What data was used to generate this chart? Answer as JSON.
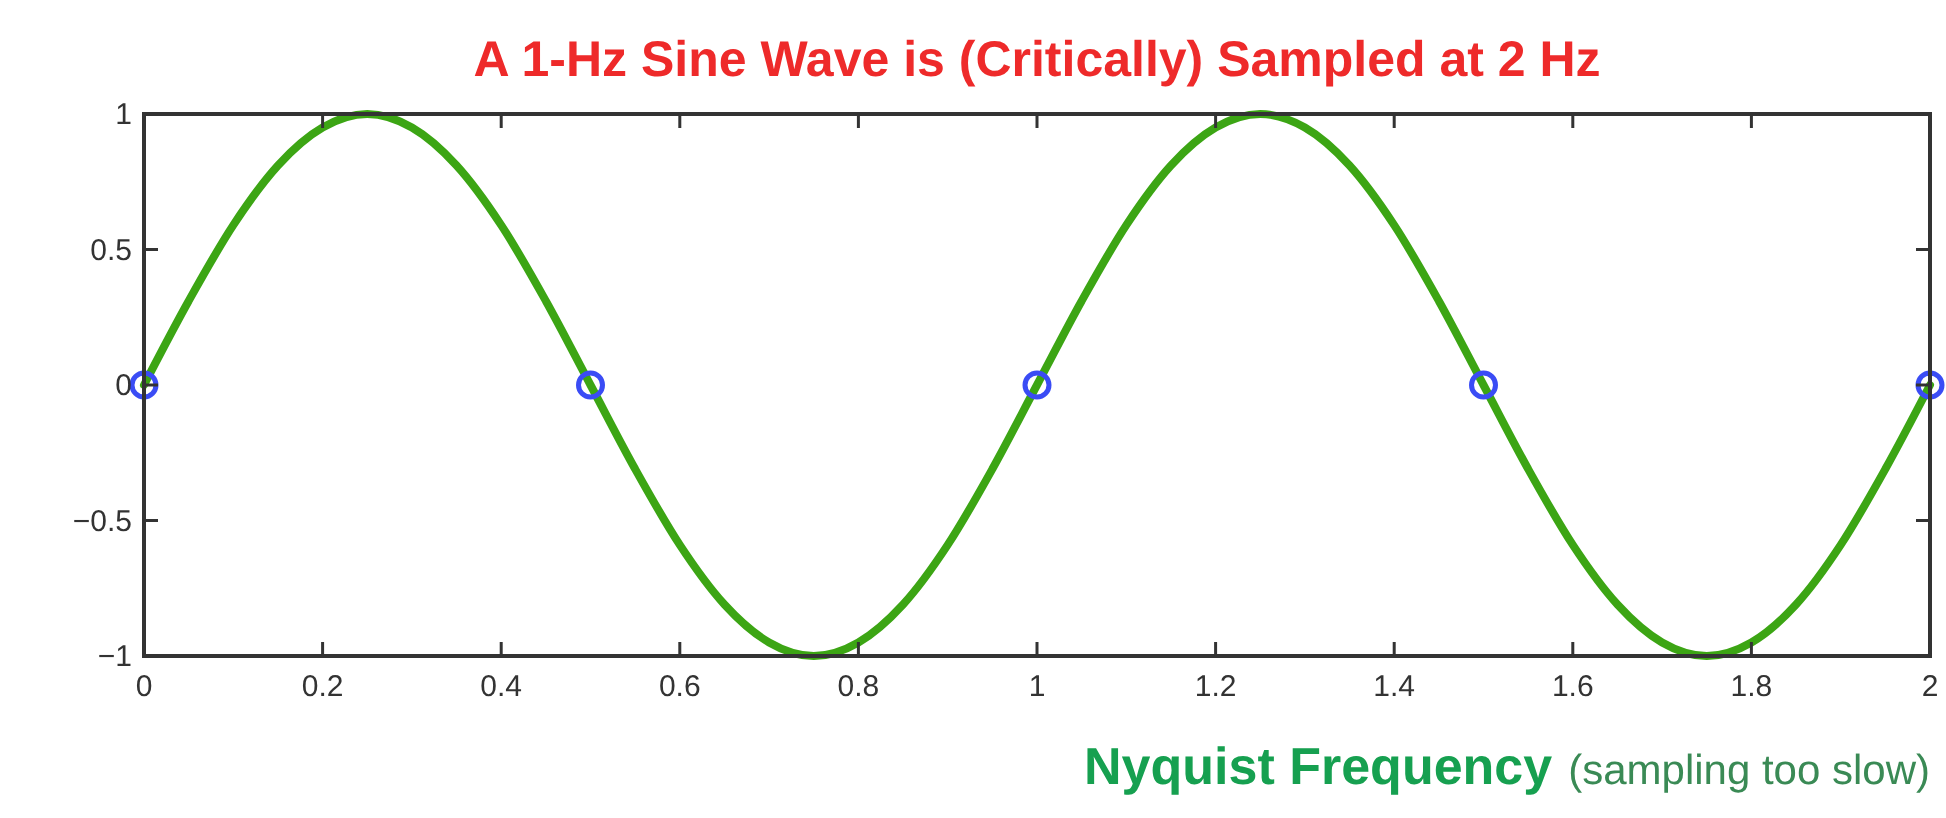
{
  "chart_data": {
    "type": "line",
    "title": "A 1-Hz Sine Wave is (Critically) Sampled at 2 Hz",
    "xlabel": "Nyquist Frequency",
    "annotations": [
      "(sampling too slow)"
    ],
    "xlim": [
      0,
      2
    ],
    "ylim": [
      -1,
      1
    ],
    "xticks": [
      0,
      0.2,
      0.4,
      0.6,
      0.8,
      1,
      1.2,
      1.4,
      1.6,
      1.8,
      2
    ],
    "yticks": [
      -1,
      -0.5,
      0,
      0.5,
      1
    ],
    "grid": false,
    "series": [
      {
        "color": "#3ca514",
        "marker": "none",
        "x": [
          0,
          0.05,
          0.1,
          0.15,
          0.2,
          0.25,
          0.3,
          0.35,
          0.4,
          0.45,
          0.5,
          0.55,
          0.6,
          0.65,
          0.7,
          0.75,
          0.8,
          0.85,
          0.9,
          0.95,
          1,
          1.05,
          1.1,
          1.15,
          1.2,
          1.25,
          1.3,
          1.35,
          1.4,
          1.45,
          1.5,
          1.55,
          1.6,
          1.65,
          1.7,
          1.75,
          1.8,
          1.85,
          1.9,
          1.95,
          2
        ],
        "values": [
          0,
          0.31,
          0.59,
          0.81,
          0.95,
          1,
          0.95,
          0.81,
          0.59,
          0.31,
          0,
          -0.31,
          -0.59,
          -0.81,
          -0.95,
          -1,
          -0.95,
          -0.81,
          -0.59,
          -0.31,
          0,
          0.31,
          0.59,
          0.81,
          0.95,
          1,
          0.95,
          0.81,
          0.59,
          0.31,
          0,
          -0.31,
          -0.59,
          -0.81,
          -0.95,
          -1,
          -0.95,
          -0.81,
          -0.59,
          -0.31,
          0
        ]
      },
      {
        "type": "scatter",
        "color": "#3a4cf5",
        "marker": "circle",
        "x": [
          0,
          0.5,
          1,
          1.5,
          2
        ],
        "values": [
          0,
          0,
          0,
          0,
          0
        ]
      }
    ]
  }
}
